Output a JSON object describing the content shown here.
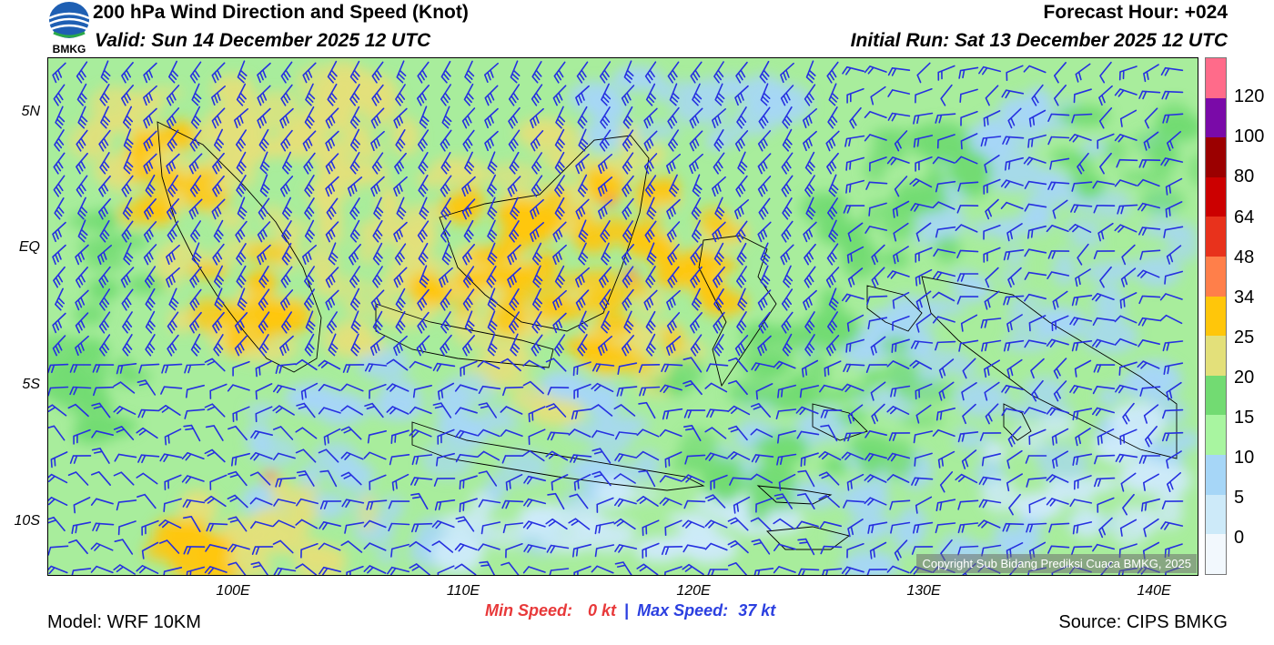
{
  "header": {
    "title": "200 hPa Wind Direction and Speed (Knot)",
    "valid": "Valid: Sun 14 December 2025 12 UTC",
    "forecast_hour": "Forecast Hour: +024",
    "initial_run": "Initial Run: Sat 13 December 2025 12 UTC"
  },
  "logo": {
    "text": "BMKG"
  },
  "map": {
    "lat_labels": [
      "5N",
      "EQ",
      "5S",
      "10S"
    ],
    "lon_labels": [
      "100E",
      "110E",
      "120E",
      "130E",
      "140E"
    ],
    "copyright": "Copyright Sub Bidang Prediksi Cuaca BMKG, 2025",
    "barb_color": "#2630e0",
    "coastline_color": "#000000"
  },
  "colorbar": {
    "labels": [
      "120",
      "100",
      "80",
      "64",
      "48",
      "34",
      "25",
      "20",
      "15",
      "10",
      "5",
      "0"
    ],
    "colors": [
      "#ff6b8a",
      "#7a0aa8",
      "#9b0000",
      "#cc0000",
      "#e8321c",
      "#ff7f4a",
      "#ffc60a",
      "#e3e07a",
      "#72db72",
      "#a8f5a0",
      "#a6d6f7",
      "#cdeaf9",
      "#f2f8fd"
    ]
  },
  "footer": {
    "min_label": "Min Speed:",
    "min_value": "0 kt",
    "separator": "|",
    "max_label": "Max Speed:",
    "max_value": "37 kt",
    "model": "Model: WRF 10KM",
    "source": "Source: CIPS BMKG"
  }
}
